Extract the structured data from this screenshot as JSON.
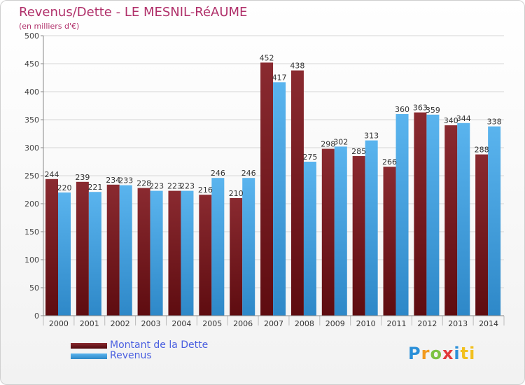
{
  "chart_data": {
    "type": "bar",
    "title": "Revenus/Dette - LE MESNIL-RéAUME",
    "subtitle": "(en milliers d'€)",
    "categories": [
      "2000",
      "2001",
      "2002",
      "2003",
      "2004",
      "2005",
      "2006",
      "2007",
      "2008",
      "2009",
      "2010",
      "2011",
      "2012",
      "2013",
      "2014"
    ],
    "series": [
      {
        "name": "Montant de la Dette",
        "color": "#7a1f24",
        "values": [
          244,
          239,
          234,
          228,
          223,
          216,
          210,
          452,
          438,
          298,
          285,
          266,
          363,
          340,
          288
        ]
      },
      {
        "name": "Revenus",
        "color": "#3ea3e6",
        "values": [
          220,
          221,
          233,
          223,
          223,
          246,
          246,
          417,
          275,
          302,
          313,
          360,
          359,
          344,
          338
        ]
      }
    ],
    "ylim": [
      0,
      500
    ],
    "yticks": [
      0,
      50,
      100,
      150,
      200,
      250,
      300,
      350,
      400,
      450,
      500
    ],
    "grid": true,
    "legend_position": "bottom-left"
  },
  "branding": {
    "letters": [
      "P",
      "r",
      "o",
      "x",
      "i",
      "ti"
    ]
  }
}
